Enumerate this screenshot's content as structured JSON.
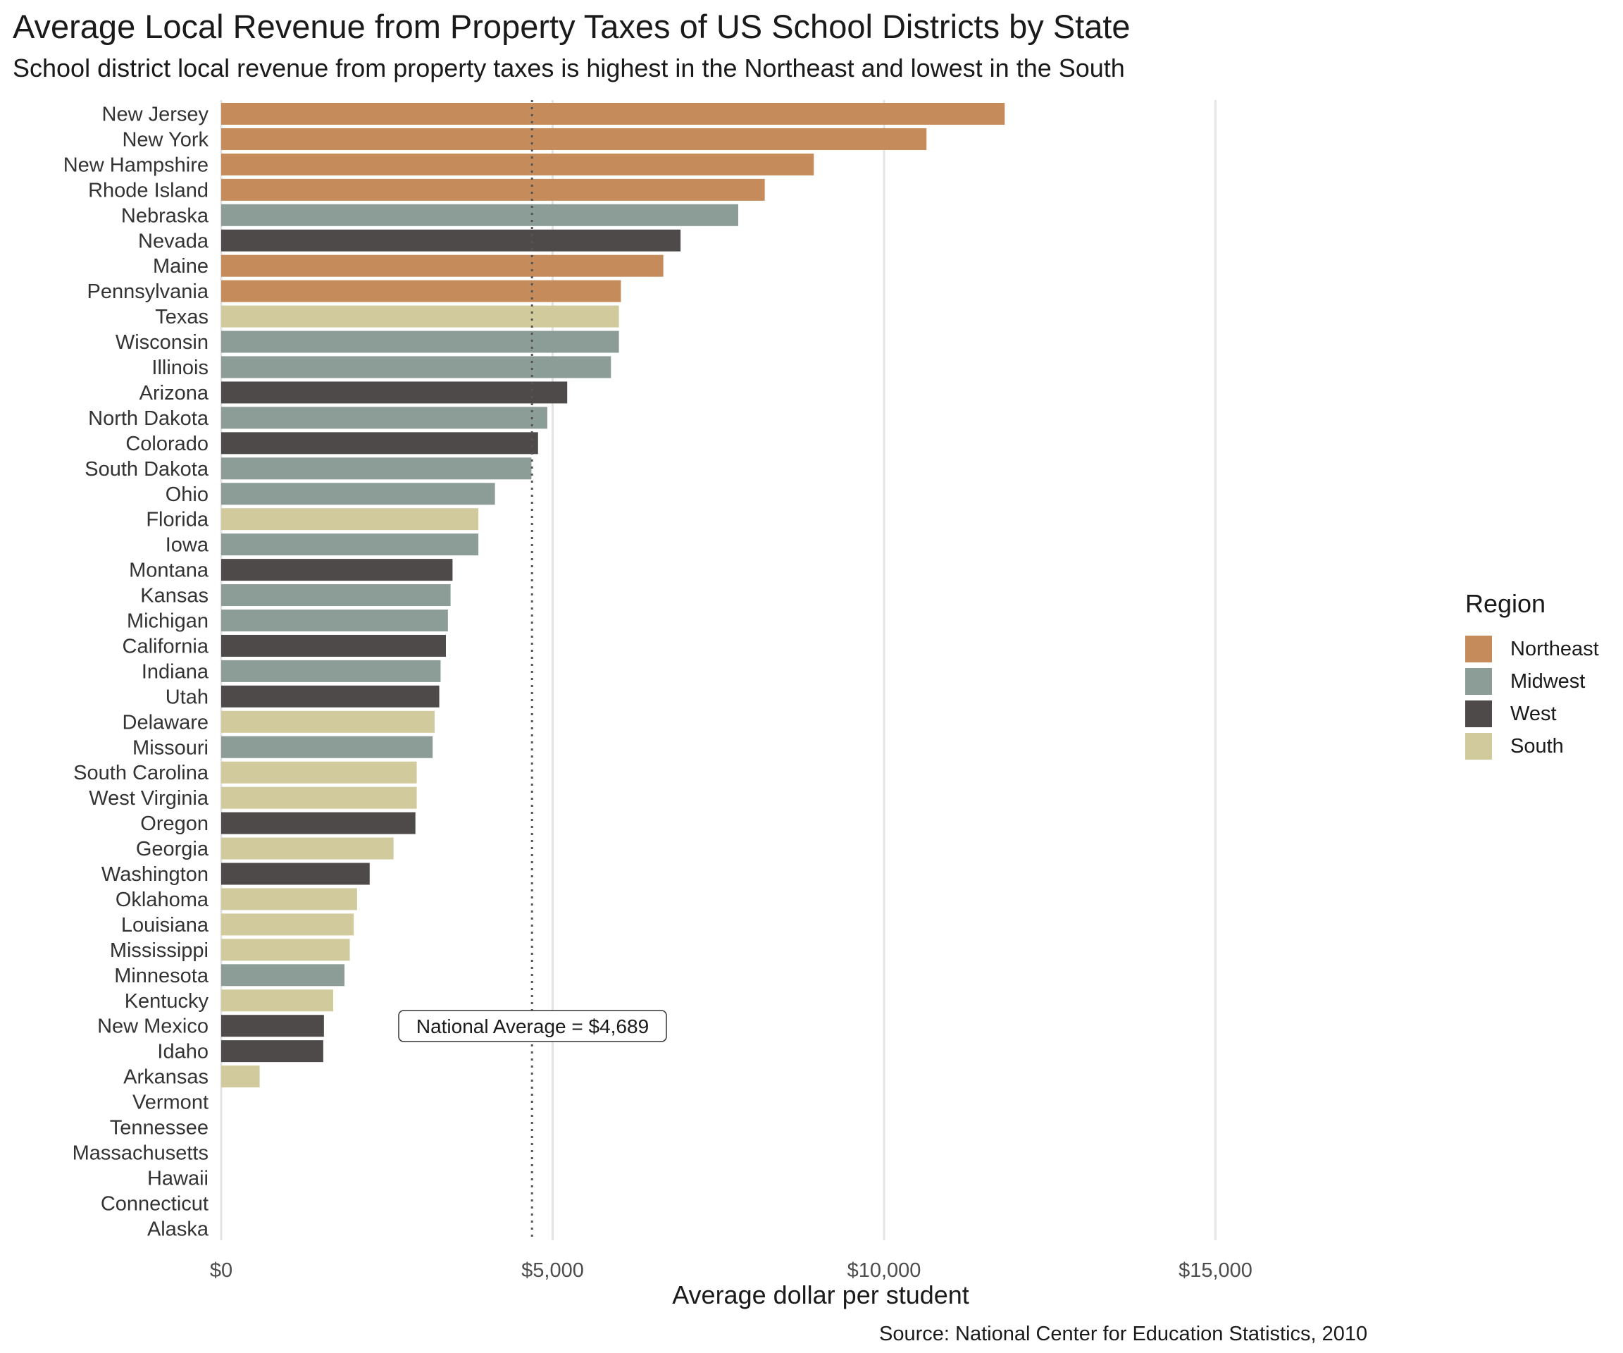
{
  "chart_data": {
    "type": "bar",
    "orientation": "horizontal",
    "title": "Average Local Revenue from Property Taxes of US School Districts by State",
    "subtitle": "School district local revenue from property taxes is highest in the Northeast and lowest in the South",
    "xlabel": "Average dollar per student",
    "ylabel": "",
    "caption": "Source: National Center for Education Statistics, 2010",
    "xlim": [
      0,
      18000
    ],
    "xticks": [
      0,
      5000,
      10000,
      15000
    ],
    "xtick_labels": [
      "$0",
      "$5,000",
      "$10,000",
      "$15,000"
    ],
    "grid": "vertical major gridlines",
    "reference_line": {
      "value": 4689,
      "style": "dotted",
      "label": "National Average = $4,689"
    },
    "legend": {
      "title": "Region",
      "placement": "right",
      "entries": [
        {
          "name": "Northeast",
          "color": "#c58b5b"
        },
        {
          "name": "Midwest",
          "color": "#8b9d96"
        },
        {
          "name": "West",
          "color": "#4f4a4a"
        },
        {
          "name": "South",
          "color": "#d1ca9c"
        }
      ]
    },
    "categories": [
      "New Jersey",
      "New York",
      "New Hampshire",
      "Rhode Island",
      "Nebraska",
      "Nevada",
      "Maine",
      "Pennsylvania",
      "Texas",
      "Wisconsin",
      "Illinois",
      "Arizona",
      "North Dakota",
      "Colorado",
      "South Dakota",
      "Ohio",
      "Florida",
      "Iowa",
      "Montana",
      "Kansas",
      "Michigan",
      "California",
      "Indiana",
      "Utah",
      "Delaware",
      "Missouri",
      "South Carolina",
      "West Virginia",
      "Oregon",
      "Georgia",
      "Washington",
      "Oklahoma",
      "Louisiana",
      "Mississippi",
      "Minnesota",
      "Kentucky",
      "New Mexico",
      "Idaho",
      "Arkansas",
      "Vermont",
      "Tennessee",
      "Massachusetts",
      "Hawaii",
      "Connecticut",
      "Alaska"
    ],
    "values": [
      11820,
      10640,
      8940,
      8200,
      7800,
      6930,
      6670,
      6030,
      6000,
      6000,
      5880,
      5220,
      4920,
      4780,
      4680,
      4130,
      3880,
      3880,
      3490,
      3460,
      3420,
      3390,
      3310,
      3290,
      3220,
      3190,
      2950,
      2950,
      2930,
      2600,
      2240,
      2050,
      2000,
      1940,
      1860,
      1690,
      1550,
      1540,
      580,
      0,
      0,
      0,
      0,
      0,
      0
    ],
    "regions": [
      "Northeast",
      "Northeast",
      "Northeast",
      "Northeast",
      "Midwest",
      "West",
      "Northeast",
      "Northeast",
      "South",
      "Midwest",
      "Midwest",
      "West",
      "Midwest",
      "West",
      "Midwest",
      "Midwest",
      "South",
      "Midwest",
      "West",
      "Midwest",
      "Midwest",
      "West",
      "Midwest",
      "West",
      "South",
      "Midwest",
      "South",
      "South",
      "West",
      "South",
      "West",
      "South",
      "South",
      "South",
      "Midwest",
      "South",
      "West",
      "West",
      "South",
      "Northeast",
      "South",
      "Northeast",
      "West",
      "Northeast",
      "West"
    ]
  }
}
